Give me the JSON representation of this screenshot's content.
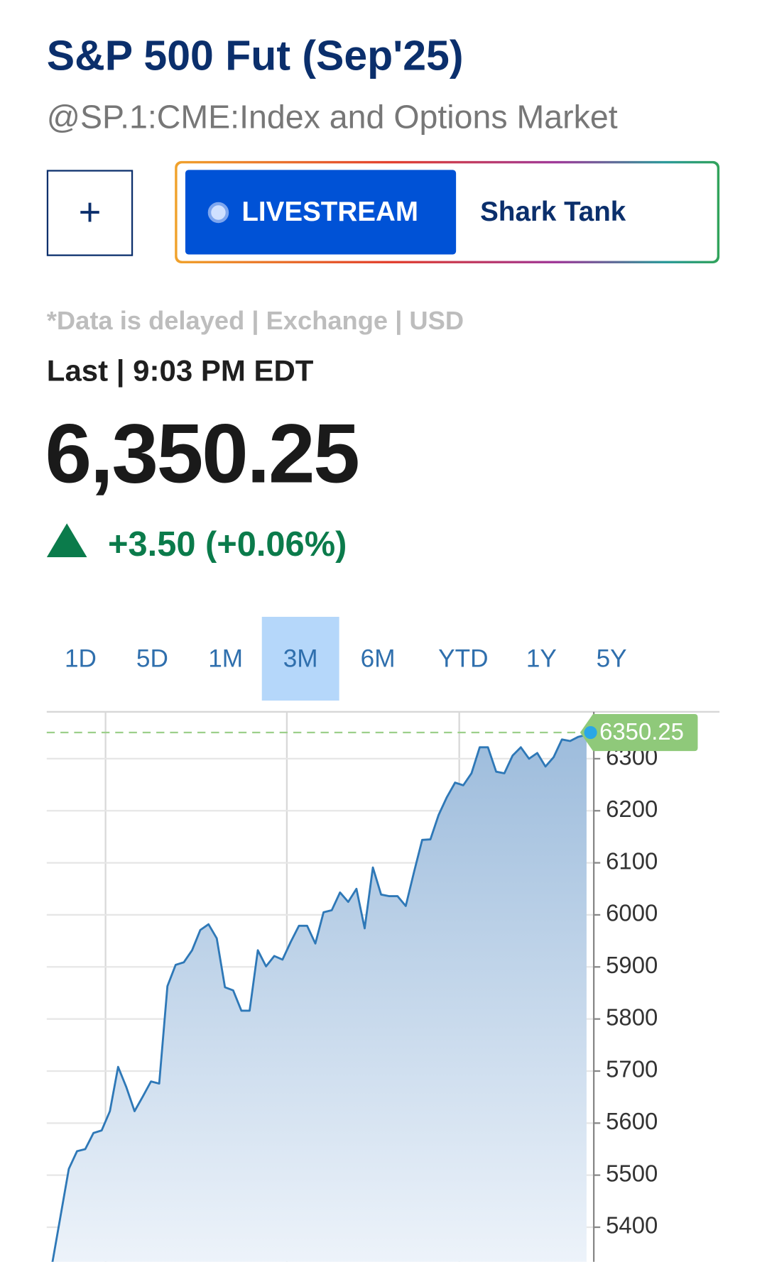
{
  "header": {
    "title": "S&P 500 Fut (Sep'25)",
    "subtitle": "@SP.1:CME:Index and Options Market"
  },
  "actions": {
    "add": "+",
    "livestream": "LIVESTREAM",
    "show": "Shark Tank"
  },
  "quote": {
    "note": "*Data is delayed | Exchange | USD",
    "last_label": "Last | 9:03 PM EDT",
    "price": "6,350.25",
    "change": "+3.50 (+0.06%)"
  },
  "range_tabs": {
    "tabs": [
      "1D",
      "5D",
      "1M",
      "3M",
      "6M",
      "YTD",
      "1Y",
      "5Y"
    ],
    "active": "3M"
  },
  "chart_data": {
    "type": "area",
    "series": [
      {
        "color": "#2e78b7",
        "values": [
          5332,
          5422,
          5512,
          5546,
          5550,
          5581,
          5586,
          5623,
          5708,
          5669,
          5623,
          5651,
          5680,
          5676,
          5863,
          5904,
          5909,
          5932,
          5971,
          5982,
          5955,
          5861,
          5855,
          5816,
          5816,
          5932,
          5901,
          5921,
          5914,
          5948,
          5979,
          5979,
          5945,
          6005,
          6009,
          6043,
          6025,
          6050,
          5974,
          6091,
          6039,
          6036,
          6036,
          6017,
          6082,
          6144,
          6145,
          6192,
          6226,
          6254,
          6249,
          6272,
          6322,
          6322,
          6275,
          6272,
          6306,
          6322,
          6300,
          6311,
          6285,
          6303,
          6337,
          6334,
          6342,
          6346
        ]
      }
    ],
    "last_value": 6350.25,
    "ylim": [
      5332,
      6390
    ],
    "yticks": [
      5400,
      5500,
      5600,
      5700,
      5800,
      5900,
      6000,
      6100,
      6200,
      6300
    ],
    "grid": true
  }
}
